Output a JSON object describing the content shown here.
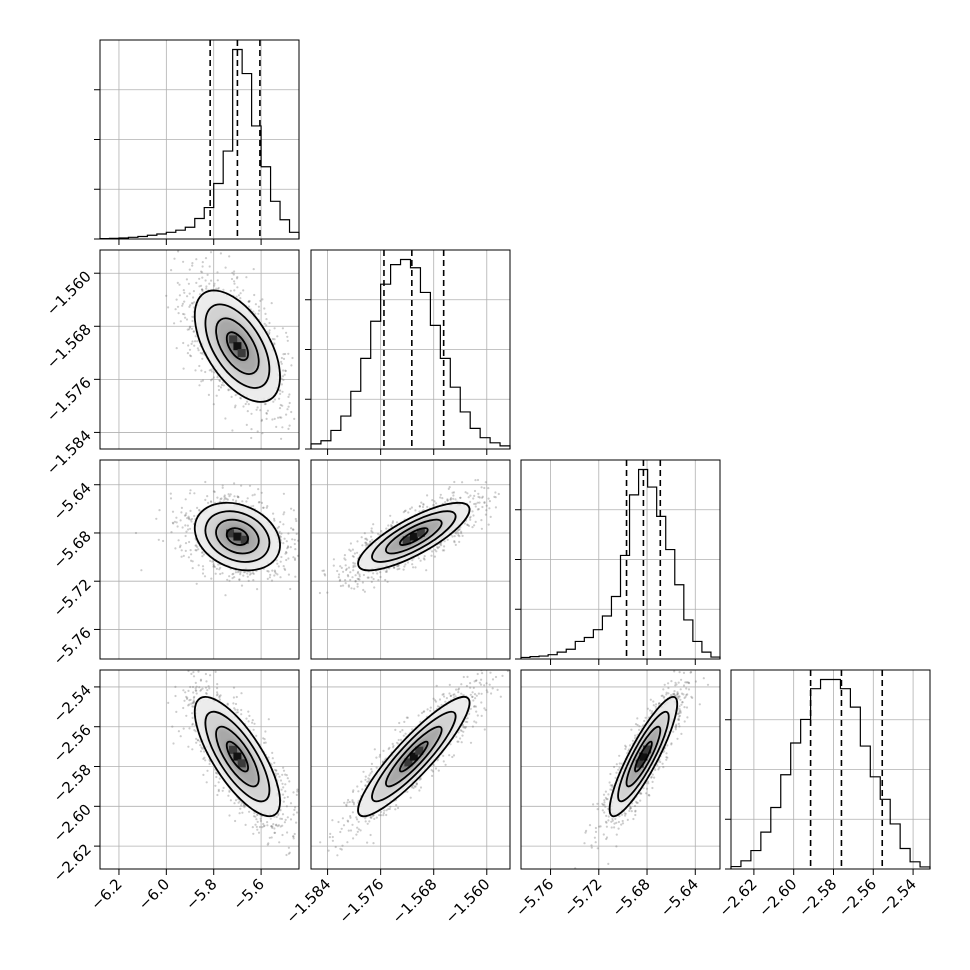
{
  "chart_data": {
    "type": "scatter",
    "title": "",
    "params": [
      {
        "name": "",
        "range": [
          -6.28,
          -5.44
        ],
        "ticks": [
          -6.2,
          -6.0,
          -5.8,
          -5.6
        ],
        "tick_labels": [
          "−6.2",
          "−6.0",
          "−5.8",
          "−5.6"
        ],
        "quantiles": [
          -5.815,
          -5.7,
          -5.605
        ]
      },
      {
        "name": "",
        "range": [
          -1.5865,
          -1.5565
        ],
        "ticks": [
          -1.584,
          -1.576,
          -1.568,
          -1.56
        ],
        "tick_labels": [
          "−1.584",
          "−1.576",
          "−1.568",
          "−1.560"
        ],
        "quantiles": [
          -1.5755,
          -1.5713,
          -1.5665
        ]
      },
      {
        "name": "",
        "range": [
          -5.7845,
          -5.6195
        ],
        "ticks": [
          -5.76,
          -5.72,
          -5.68,
          -5.64
        ],
        "tick_labels": [
          "−5.76",
          "−5.72",
          "−5.68",
          "−5.64"
        ],
        "quantiles": [
          -5.697,
          -5.683,
          -5.669
        ]
      },
      {
        "name": "",
        "range": [
          -2.6315,
          -2.5315
        ],
        "ticks": [
          -2.62,
          -2.6,
          -2.58,
          -2.56,
          -2.54
        ],
        "tick_labels": [
          "−2.62",
          "−2.60",
          "−2.58",
          "−2.56",
          "−2.54"
        ],
        "quantiles": [
          -2.5915,
          -2.576,
          -2.5555
        ]
      }
    ],
    "histograms": [
      {
        "param": 0,
        "bin_edges": [
          -6.28,
          -6.24,
          -6.2,
          -6.16,
          -6.12,
          -6.08,
          -6.04,
          -6.0,
          -5.96,
          -5.92,
          -5.88,
          -5.84,
          -5.8,
          -5.76,
          -5.72,
          -5.68,
          -5.64,
          -5.6,
          -5.56,
          -5.52,
          -5.48,
          -5.44
        ],
        "counts": [
          2,
          3,
          5,
          8,
          12,
          18,
          24,
          32,
          42,
          56,
          98,
          150,
          265,
          420,
          905,
          790,
          540,
          345,
          180,
          92,
          32
        ]
      },
      {
        "param": 1,
        "bin_edges": [
          -1.5865,
          -1.585,
          -1.5835,
          -1.582,
          -1.5805,
          -1.579,
          -1.5775,
          -1.576,
          -1.5745,
          -1.573,
          -1.5715,
          -1.57,
          -1.5685,
          -1.567,
          -1.5655,
          -1.564,
          -1.5625,
          -1.561,
          -1.5595,
          -1.558,
          -1.5565
        ],
        "counts": [
          25,
          40,
          90,
          160,
          280,
          440,
          620,
          800,
          895,
          920,
          880,
          760,
          600,
          440,
          300,
          180,
          100,
          55,
          30,
          15
        ]
      },
      {
        "param": 2,
        "bin_edges": [
          -5.7845,
          -5.777,
          -5.7695,
          -5.762,
          -5.7545,
          -5.747,
          -5.7395,
          -5.732,
          -5.7245,
          -5.717,
          -5.7095,
          -5.702,
          -5.6945,
          -5.687,
          -5.6795,
          -5.672,
          -5.6645,
          -5.657,
          -5.6495,
          -5.642,
          -5.6345,
          -5.627,
          -5.6195
        ],
        "counts": [
          8,
          12,
          15,
          22,
          35,
          50,
          90,
          110,
          150,
          220,
          320,
          530,
          840,
          970,
          880,
          730,
          560,
          380,
          200,
          90,
          35,
          10
        ]
      },
      {
        "param": 3,
        "bin_edges": [
          -2.6315,
          -2.6265,
          -2.6215,
          -2.6165,
          -2.6115,
          -2.6065,
          -2.6015,
          -2.5965,
          -2.5915,
          -2.5865,
          -2.5815,
          -2.5765,
          -2.5715,
          -2.5665,
          -2.5615,
          -2.5565,
          -2.5515,
          -2.5465,
          -2.5415,
          -2.5365,
          -2.5315
        ],
        "counts": [
          12,
          40,
          90,
          180,
          300,
          460,
          615,
          730,
          880,
          925,
          925,
          880,
          790,
          600,
          450,
          340,
          220,
          100,
          35,
          10
        ]
      }
    ],
    "pairs": [
      {
        "x": 0,
        "y": 1,
        "mean": [
          -5.7,
          -1.571
        ],
        "sd": [
          0.09,
          0.0042
        ],
        "corr": -0.55
      },
      {
        "x": 0,
        "y": 2,
        "mean": [
          -5.7,
          -5.683
        ],
        "sd": [
          0.09,
          0.014
        ],
        "corr": -0.25
      },
      {
        "x": 1,
        "y": 2,
        "mean": [
          -1.571,
          -5.683
        ],
        "sd": [
          0.0042,
          0.014
        ],
        "corr": 0.8
      },
      {
        "x": 0,
        "y": 3,
        "mean": [
          -5.7,
          -2.575
        ],
        "sd": [
          0.09,
          0.015
        ],
        "corr": -0.75
      },
      {
        "x": 1,
        "y": 3,
        "mean": [
          -1.571,
          -2.575
        ],
        "sd": [
          0.0042,
          0.015
        ],
        "corr": 0.9
      },
      {
        "x": 2,
        "y": 3,
        "mean": [
          -5.683,
          -2.575
        ],
        "sd": [
          0.014,
          0.015
        ],
        "corr": 0.88
      }
    ],
    "contour_levels_sigma": [
      0.5,
      1.0,
      1.5,
      2.0
    ],
    "grid": true,
    "legend": "none"
  }
}
